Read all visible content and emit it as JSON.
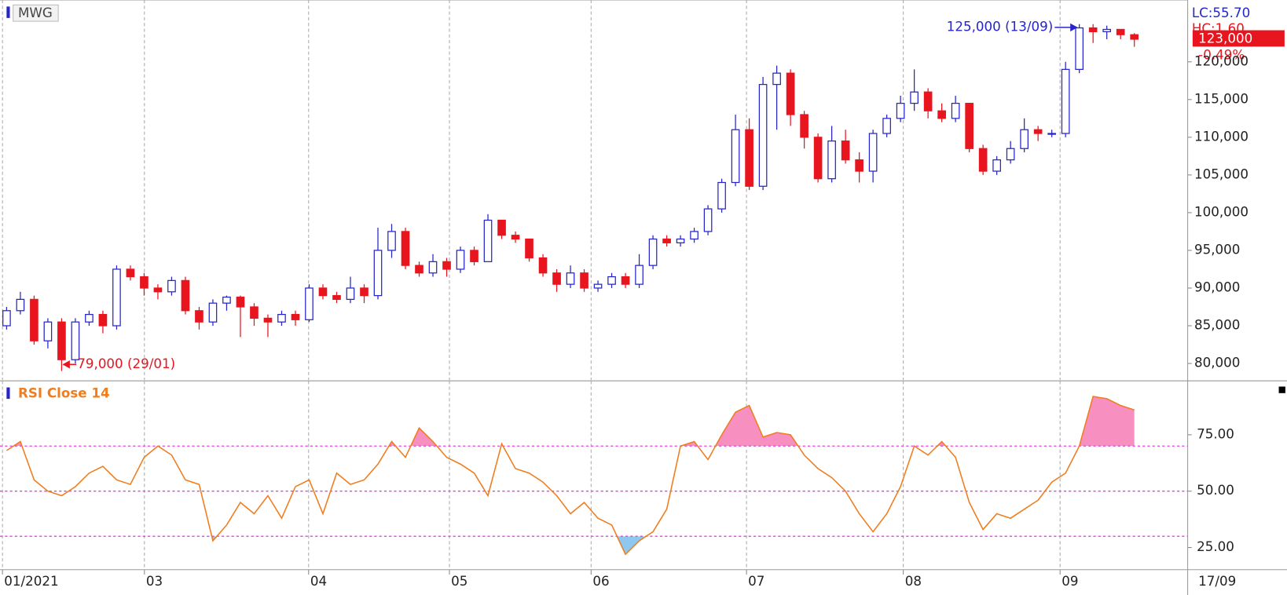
{
  "chart_data": [
    {
      "type": "candlestick",
      "title": "MWG",
      "open": [
        85000,
        87000,
        88500,
        83000,
        85500,
        80500,
        85500,
        86500,
        85000,
        92500,
        91500,
        90000,
        89500,
        91000,
        87000,
        85500,
        88000,
        88800,
        87500,
        86000,
        85500,
        86500,
        85800,
        90000,
        89000,
        88500,
        90000,
        89000,
        95000,
        97500,
        93000,
        92000,
        93500,
        92500,
        95000,
        93500,
        99000,
        97000,
        96500,
        94000,
        92000,
        90500,
        92000,
        90000,
        90500,
        91500,
        90500,
        93000,
        96500,
        96000,
        96500,
        97500,
        100500,
        104000,
        111000,
        103500,
        117000,
        118500,
        113000,
        110000,
        104500,
        109500,
        107000,
        105500,
        110500,
        112500,
        114500,
        116000,
        113500,
        112500,
        114500,
        108500,
        105500,
        107000,
        108500,
        111000,
        110500,
        110500,
        119000,
        124500,
        124000,
        124300,
        123600
      ],
      "high": [
        87500,
        89500,
        89000,
        86000,
        86000,
        86000,
        87000,
        87000,
        93000,
        93000,
        92000,
        90500,
        91500,
        91500,
        87500,
        88500,
        89000,
        89000,
        88000,
        86500,
        87000,
        87000,
        90500,
        90500,
        89500,
        91500,
        90500,
        98000,
        98500,
        98000,
        93500,
        94500,
        94000,
        95500,
        95500,
        99800,
        99000,
        97500,
        96500,
        94500,
        92500,
        93000,
        92500,
        91000,
        92000,
        92000,
        94500,
        97000,
        97000,
        97000,
        98000,
        101000,
        104500,
        113000,
        112500,
        118000,
        119500,
        119000,
        113500,
        110500,
        111500,
        111000,
        108000,
        111000,
        113000,
        115500,
        119000,
        116500,
        114500,
        115500,
        114500,
        109000,
        107500,
        109500,
        112500,
        111500,
        111000,
        120000,
        125000,
        125000,
        124800,
        124300,
        123800
      ],
      "low": [
        84500,
        86500,
        82500,
        82000,
        79000,
        80000,
        85000,
        84000,
        84500,
        91000,
        89000,
        88500,
        89000,
        86500,
        84500,
        85000,
        87000,
        83500,
        85000,
        83500,
        85000,
        85000,
        85500,
        88500,
        88000,
        88000,
        88000,
        88500,
        94000,
        92500,
        91500,
        91500,
        91500,
        92000,
        93000,
        93500,
        96500,
        96000,
        93500,
        91500,
        89500,
        90000,
        89500,
        89500,
        90000,
        90000,
        90000,
        92500,
        95500,
        95500,
        96000,
        97000,
        100000,
        103500,
        103000,
        103000,
        111000,
        111500,
        108500,
        104000,
        104000,
        106500,
        104000,
        104000,
        110000,
        112000,
        113500,
        112500,
        112000,
        112000,
        108000,
        105000,
        105000,
        106500,
        108000,
        109500,
        110000,
        110000,
        118500,
        122500,
        123000,
        123000,
        122000
      ],
      "close": [
        87000,
        88500,
        83000,
        85500,
        80500,
        85500,
        86500,
        85000,
        92500,
        91500,
        90000,
        89500,
        91000,
        87000,
        85500,
        88000,
        88800,
        87500,
        86000,
        85500,
        86500,
        85800,
        90000,
        89000,
        88500,
        90000,
        89000,
        95000,
        97500,
        93000,
        92000,
        93500,
        92500,
        95000,
        93500,
        99000,
        97000,
        96500,
        94000,
        92000,
        90500,
        92000,
        90000,
        90500,
        91500,
        90500,
        93000,
        96500,
        96000,
        96500,
        97500,
        100500,
        104000,
        111000,
        103500,
        117000,
        118500,
        113000,
        110000,
        104500,
        109500,
        107000,
        105500,
        110500,
        112500,
        114500,
        116000,
        113500,
        112500,
        114500,
        108500,
        105500,
        107000,
        108500,
        111000,
        110500,
        110500,
        119000,
        124500,
        124000,
        124300,
        123600,
        123000
      ],
      "up_color": "#2626c8",
      "down_color": "#e8141e",
      "ylim": [
        77800,
        128200
      ],
      "yticks": [
        {
          "value": 80000,
          "label": "80,000"
        },
        {
          "value": 85000,
          "label": "85,000"
        },
        {
          "value": 90000,
          "label": "90,000"
        },
        {
          "value": 95000,
          "label": "95,000"
        },
        {
          "value": 100000,
          "label": "100,000"
        },
        {
          "value": 105000,
          "label": "105,000"
        },
        {
          "value": 110000,
          "label": "110,000"
        },
        {
          "value": 115000,
          "label": "115,000"
        },
        {
          "value": 120000,
          "label": "120,000"
        }
      ],
      "xlim": [
        -0.48,
        85.88
      ],
      "xticks": [
        {
          "value": -0.3,
          "label": "01/2021"
        },
        {
          "value": 10.02,
          "label": "03"
        },
        {
          "value": 21.96,
          "label": "04"
        },
        {
          "value": 32.2,
          "label": "05"
        },
        {
          "value": 42.5,
          "label": "06"
        },
        {
          "value": 53.8,
          "label": "07"
        },
        {
          "value": 65.2,
          "label": "08"
        },
        {
          "value": 76.6,
          "label": "09"
        }
      ],
      "grid": "x",
      "max_label": "125,000 (13/09)",
      "min_label": "79,000 (29/01)",
      "last_label": "123,000",
      "change_label": "-0.49%",
      "info": [
        "LC:55.70",
        "HC:1.60"
      ],
      "last_date_label": "17/09"
    },
    {
      "type": "line",
      "title": "RSI Close 14",
      "values": [
        68,
        72,
        55,
        50,
        48,
        52,
        58,
        61,
        55,
        53,
        65,
        70,
        66,
        55,
        53,
        28,
        35,
        45,
        40,
        48,
        38,
        52,
        55,
        40,
        58,
        53,
        55,
        62,
        72,
        65,
        78,
        72,
        65,
        62,
        58,
        48,
        71,
        60,
        58,
        54,
        48,
        40,
        45,
        38,
        35,
        22,
        28,
        32,
        42,
        70,
        72,
        64,
        75,
        85,
        88,
        74,
        76,
        75,
        66,
        60,
        56,
        50,
        40,
        32,
        40,
        52,
        70,
        66,
        72,
        65,
        45,
        33,
        40,
        38,
        42,
        46,
        54,
        58,
        70,
        92,
        91,
        88,
        86
      ],
      "color": "#f07d1e",
      "ylim": [
        15.2,
        98.9
      ],
      "yticks": [
        {
          "value": 25,
          "label": "25.00"
        },
        {
          "value": 50,
          "label": "50.00"
        },
        {
          "value": 75,
          "label": "75.00"
        }
      ],
      "levels": [
        30,
        50,
        70
      ],
      "level_color": "#e040e0",
      "overbought_color": "#f78fc0",
      "oversold_color": "#8ec8f0"
    }
  ]
}
